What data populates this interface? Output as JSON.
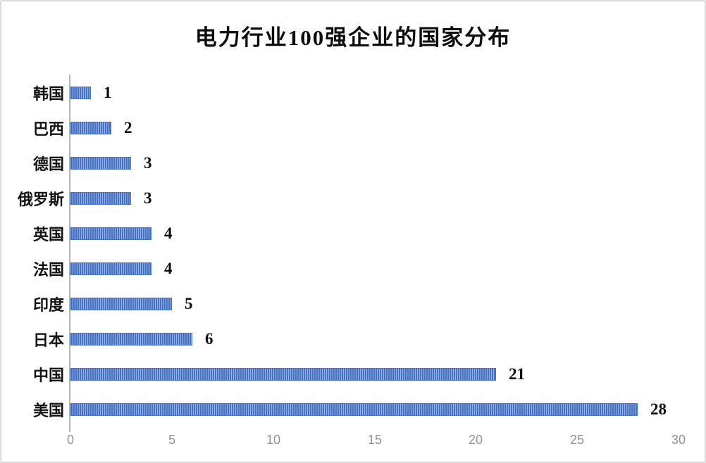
{
  "chart": {
    "colors": {
      "bar_base": "#4472C4",
      "bar_stripe": "#9FB3E2",
      "axis_line": "#B3B3B3",
      "tick_text": "#8E9499",
      "label_text": "#141414",
      "title_text": "#0D0D0D",
      "card_border": "#DCDCDE",
      "background": "#FFFFFF"
    }
  },
  "chart_data": {
    "type": "bar",
    "orientation": "horizontal",
    "title": "电力行业100强企业的国家分布",
    "categories": [
      "韩国",
      "巴西",
      "德国",
      "俄罗斯",
      "英国",
      "法国",
      "印度",
      "日本",
      "中国",
      "美国"
    ],
    "values": [
      1,
      2,
      3,
      3,
      4,
      4,
      5,
      6,
      21,
      28
    ],
    "xlabel": "",
    "ylabel": "",
    "xlim": [
      0,
      30
    ],
    "xticks": [
      0,
      5,
      10,
      15,
      20,
      25,
      30
    ],
    "grid": false,
    "legend": "none",
    "bar_style": "vertical-stripe-pattern",
    "value_labels": true,
    "category_order_on_screen": "top-to-bottom"
  }
}
